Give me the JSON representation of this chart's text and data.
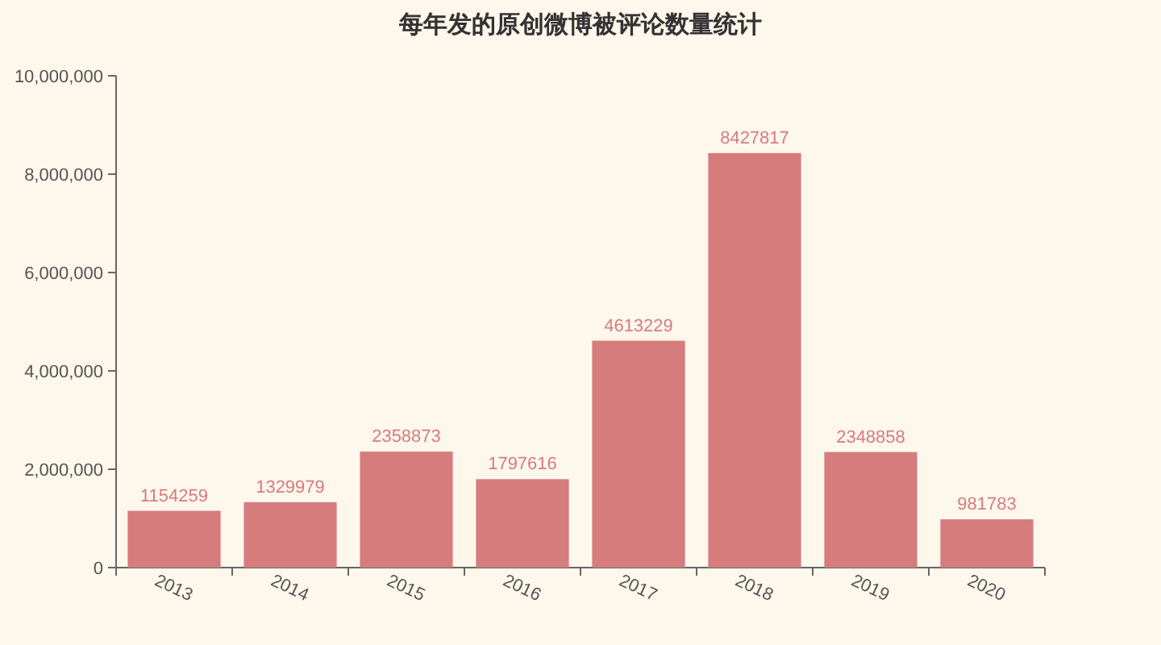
{
  "chart_data": {
    "type": "bar",
    "title": "每年发的原创微博被评论数量统计",
    "categories": [
      "2013",
      "2014",
      "2015",
      "2016",
      "2017",
      "2018",
      "2019",
      "2020"
    ],
    "values": [
      1154259,
      1329979,
      2358873,
      1797616,
      4613229,
      8427817,
      2348858,
      981783
    ],
    "color": "#d77c7c",
    "data_labels": true,
    "ylim": [
      0,
      10000000
    ],
    "yticks": [
      0,
      {
        "value": 2000000,
        "label": "2,000,000"
      },
      {
        "value": 4000000,
        "label": "4,000,000"
      },
      {
        "value": 6000000,
        "label": "6,000,000"
      },
      {
        "value": 8000000,
        "label": "8,000,000"
      },
      {
        "value": 10000000,
        "label": "10,000,000"
      }
    ]
  }
}
